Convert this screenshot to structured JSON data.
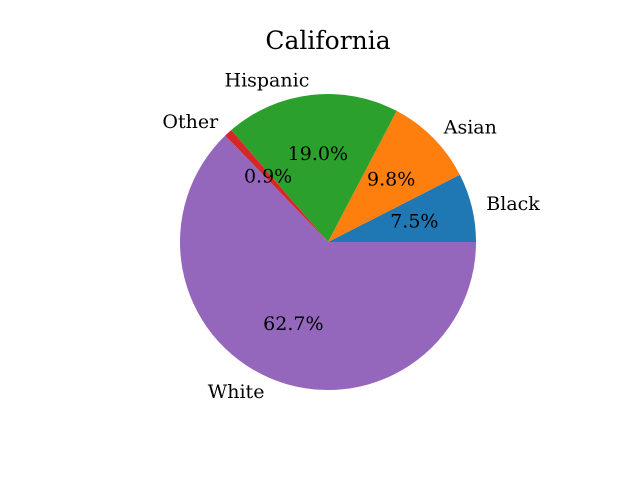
{
  "chart_data": {
    "type": "pie",
    "title": "California",
    "categories": [
      "Black",
      "Asian",
      "Hispanic",
      "Other",
      "White"
    ],
    "values": [
      7.5,
      9.8,
      19.0,
      0.9,
      62.7
    ],
    "value_labels": [
      "7.5%",
      "9.8%",
      "19.0%",
      "0.9%",
      "62.7%"
    ],
    "colors": [
      "#1f77b4",
      "#ff7f0e",
      "#2ca02c",
      "#d62728",
      "#9467bd"
    ],
    "start_angle_deg": 0,
    "direction": "counterclockwise",
    "legend": "none"
  }
}
